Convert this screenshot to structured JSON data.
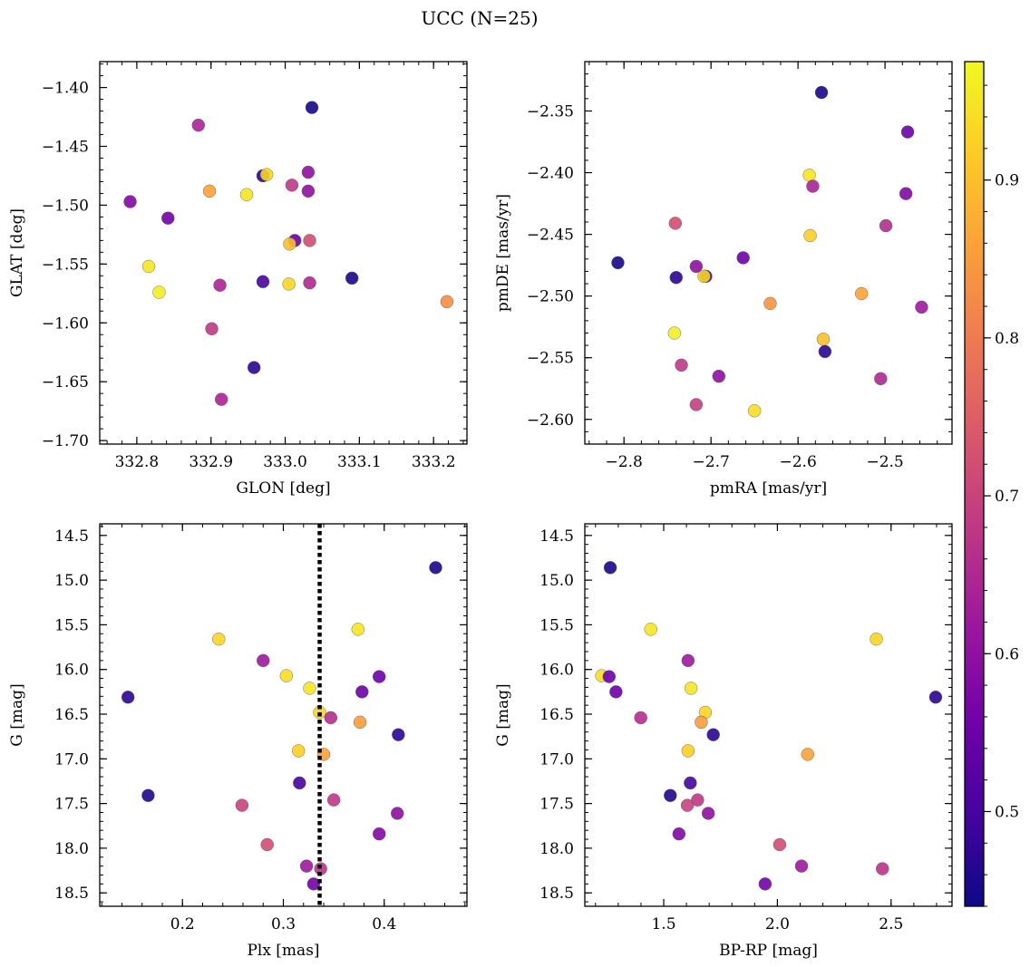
{
  "figure": {
    "title": "UCC (N=25)"
  },
  "colorbar": {
    "min": 0.44,
    "max": 0.975,
    "ticks": [
      0.5,
      0.6,
      0.7,
      0.8,
      0.9
    ],
    "tick_labels": [
      "0.5",
      "0.6",
      "0.7",
      "0.8",
      "0.9"
    ],
    "colormap": "plasma",
    "stops": [
      "#0d0887",
      "#46039f",
      "#7201a8",
      "#9c179e",
      "#bd3786",
      "#d8576b",
      "#ed7953",
      "#fb9f3a",
      "#fdca26",
      "#f0f921"
    ]
  },
  "chart_data": [
    {
      "type": "scatter",
      "name": "panel-glon-glat",
      "xlabel": "GLON [deg]",
      "ylabel": "GLAT [deg]",
      "xlim": [
        332.75,
        333.245
      ],
      "ylim": [
        -1.703,
        -1.378
      ],
      "y_inverted": false,
      "xticks": [
        332.8,
        332.9,
        333.0,
        333.1,
        333.2
      ],
      "xtick_labels": [
        "332.8",
        "332.9",
        "333.0",
        "333.1",
        "333.2"
      ],
      "yticks": [
        -1.7,
        -1.65,
        -1.6,
        -1.55,
        -1.5,
        -1.45,
        -1.4
      ],
      "ytick_labels": [
        "−1.70",
        "−1.65",
        "−1.60",
        "−1.55",
        "−1.50",
        "−1.45",
        "−1.40"
      ],
      "x_minor_step": 0.02,
      "y_minor_step": 0.01,
      "points": [
        {
          "x": 333.036,
          "y": -1.417,
          "c": 0.45
        },
        {
          "x": 332.883,
          "y": -1.432,
          "c": 0.64
        },
        {
          "x": 332.97,
          "y": -1.475,
          "c": 0.47
        },
        {
          "x": 332.975,
          "y": -1.474,
          "c": 0.93
        },
        {
          "x": 333.031,
          "y": -1.472,
          "c": 0.6
        },
        {
          "x": 333.009,
          "y": -1.483,
          "c": 0.68
        },
        {
          "x": 333.031,
          "y": -1.488,
          "c": 0.6
        },
        {
          "x": 332.898,
          "y": -1.488,
          "c": 0.86
        },
        {
          "x": 332.948,
          "y": -1.491,
          "c": 0.95
        },
        {
          "x": 332.791,
          "y": -1.497,
          "c": 0.58
        },
        {
          "x": 332.842,
          "y": -1.511,
          "c": 0.56
        },
        {
          "x": 333.013,
          "y": -1.53,
          "c": 0.55
        },
        {
          "x": 333.033,
          "y": -1.53,
          "c": 0.72
        },
        {
          "x": 333.006,
          "y": -1.533,
          "c": 0.9
        },
        {
          "x": 332.816,
          "y": -1.552,
          "c": 0.95
        },
        {
          "x": 333.09,
          "y": -1.562,
          "c": 0.45
        },
        {
          "x": 332.97,
          "y": -1.565,
          "c": 0.5
        },
        {
          "x": 333.005,
          "y": -1.567,
          "c": 0.93
        },
        {
          "x": 333.033,
          "y": -1.566,
          "c": 0.65
        },
        {
          "x": 332.912,
          "y": -1.568,
          "c": 0.64
        },
        {
          "x": 332.83,
          "y": -1.574,
          "c": 0.96
        },
        {
          "x": 333.218,
          "y": -1.582,
          "c": 0.83
        },
        {
          "x": 332.901,
          "y": -1.605,
          "c": 0.68
        },
        {
          "x": 332.958,
          "y": -1.638,
          "c": 0.47
        },
        {
          "x": 332.914,
          "y": -1.665,
          "c": 0.64
        }
      ]
    },
    {
      "type": "scatter",
      "name": "panel-pmra-pmde",
      "xlabel": "pmRA [mas/yr]",
      "ylabel": "pmDE [mas/yr]",
      "xlim": [
        -2.845,
        -2.423
      ],
      "ylim": [
        -2.62,
        -2.31
      ],
      "y_inverted": false,
      "xticks": [
        -2.8,
        -2.7,
        -2.6,
        -2.5
      ],
      "xtick_labels": [
        "−2.8",
        "−2.7",
        "−2.6",
        "−2.5"
      ],
      "yticks": [
        -2.6,
        -2.55,
        -2.5,
        -2.45,
        -2.4,
        -2.35
      ],
      "ytick_labels": [
        "−2.60",
        "−2.55",
        "−2.50",
        "−2.45",
        "−2.40",
        "−2.35"
      ],
      "x_minor_step": 0.02,
      "y_minor_step": 0.01,
      "points": [
        {
          "x": -2.573,
          "y": -2.335,
          "c": 0.45
        },
        {
          "x": -2.474,
          "y": -2.367,
          "c": 0.55
        },
        {
          "x": -2.587,
          "y": -2.402,
          "c": 0.95
        },
        {
          "x": -2.583,
          "y": -2.411,
          "c": 0.64
        },
        {
          "x": -2.476,
          "y": -2.417,
          "c": 0.58
        },
        {
          "x": -2.741,
          "y": -2.441,
          "c": 0.72
        },
        {
          "x": -2.499,
          "y": -2.443,
          "c": 0.66
        },
        {
          "x": -2.586,
          "y": -2.451,
          "c": 0.92
        },
        {
          "x": -2.663,
          "y": -2.469,
          "c": 0.55
        },
        {
          "x": -2.807,
          "y": -2.473,
          "c": 0.45
        },
        {
          "x": -2.717,
          "y": -2.476,
          "c": 0.6
        },
        {
          "x": -2.74,
          "y": -2.485,
          "c": 0.47
        },
        {
          "x": -2.706,
          "y": -2.484,
          "c": 0.5
        },
        {
          "x": -2.708,
          "y": -2.484,
          "c": 0.93
        },
        {
          "x": -2.527,
          "y": -2.498,
          "c": 0.86
        },
        {
          "x": -2.632,
          "y": -2.506,
          "c": 0.84
        },
        {
          "x": -2.458,
          "y": -2.509,
          "c": 0.62
        },
        {
          "x": -2.742,
          "y": -2.53,
          "c": 0.96
        },
        {
          "x": -2.571,
          "y": -2.535,
          "c": 0.9
        },
        {
          "x": -2.569,
          "y": -2.545,
          "c": 0.47
        },
        {
          "x": -2.734,
          "y": -2.556,
          "c": 0.68
        },
        {
          "x": -2.691,
          "y": -2.565,
          "c": 0.6
        },
        {
          "x": -2.505,
          "y": -2.567,
          "c": 0.65
        },
        {
          "x": -2.717,
          "y": -2.588,
          "c": 0.69
        },
        {
          "x": -2.65,
          "y": -2.593,
          "c": 0.94
        }
      ]
    },
    {
      "type": "scatter",
      "name": "panel-plx-g",
      "xlabel": "Plx [mas]",
      "ylabel": "G [mag]",
      "xlim": [
        0.118,
        0.482
      ],
      "ylim": [
        18.65,
        14.37
      ],
      "y_inverted": true,
      "xticks": [
        0.2,
        0.3,
        0.4
      ],
      "xtick_labels": [
        "0.2",
        "0.3",
        "0.4"
      ],
      "yticks": [
        14.5,
        15.0,
        15.5,
        16.0,
        16.5,
        17.0,
        17.5,
        18.0,
        18.5
      ],
      "ytick_labels": [
        "14.5",
        "15.0",
        "15.5",
        "16.0",
        "16.5",
        "17.0",
        "17.5",
        "18.0",
        "18.5"
      ],
      "x_minor_step": 0.02,
      "y_minor_step": 0.1,
      "vline_x": 0.336,
      "points": [
        {
          "x": 0.451,
          "y": 14.86,
          "c": 0.45
        },
        {
          "x": 0.374,
          "y": 15.55,
          "c": 0.95
        },
        {
          "x": 0.236,
          "y": 15.66,
          "c": 0.93
        },
        {
          "x": 0.28,
          "y": 15.9,
          "c": 0.62
        },
        {
          "x": 0.395,
          "y": 16.08,
          "c": 0.55
        },
        {
          "x": 0.303,
          "y": 16.07,
          "c": 0.94
        },
        {
          "x": 0.326,
          "y": 16.21,
          "c": 0.95
        },
        {
          "x": 0.378,
          "y": 16.25,
          "c": 0.55
        },
        {
          "x": 0.146,
          "y": 16.31,
          "c": 0.47
        },
        {
          "x": 0.336,
          "y": 16.48,
          "c": 0.93
        },
        {
          "x": 0.347,
          "y": 16.54,
          "c": 0.66
        },
        {
          "x": 0.376,
          "y": 16.59,
          "c": 0.85
        },
        {
          "x": 0.414,
          "y": 16.73,
          "c": 0.47
        },
        {
          "x": 0.315,
          "y": 16.91,
          "c": 0.92
        },
        {
          "x": 0.34,
          "y": 16.95,
          "c": 0.86
        },
        {
          "x": 0.316,
          "y": 17.27,
          "c": 0.5
        },
        {
          "x": 0.166,
          "y": 17.41,
          "c": 0.46
        },
        {
          "x": 0.35,
          "y": 17.46,
          "c": 0.68
        },
        {
          "x": 0.259,
          "y": 17.52,
          "c": 0.7
        },
        {
          "x": 0.413,
          "y": 17.61,
          "c": 0.6
        },
        {
          "x": 0.395,
          "y": 17.84,
          "c": 0.58
        },
        {
          "x": 0.284,
          "y": 17.96,
          "c": 0.72
        },
        {
          "x": 0.323,
          "y": 18.2,
          "c": 0.62
        },
        {
          "x": 0.337,
          "y": 18.23,
          "c": 0.67
        },
        {
          "x": 0.33,
          "y": 18.4,
          "c": 0.56
        }
      ]
    },
    {
      "type": "scatter",
      "name": "panel-bprp-g",
      "xlabel": "BP-RP [mag]",
      "ylabel": "G [mag]",
      "xlim": [
        1.153,
        2.768
      ],
      "ylim": [
        18.65,
        14.37
      ],
      "y_inverted": true,
      "xticks": [
        1.5,
        2.0,
        2.5
      ],
      "xtick_labels": [
        "1.5",
        "2.0",
        "2.5"
      ],
      "yticks": [
        14.5,
        15.0,
        15.5,
        16.0,
        16.5,
        17.0,
        17.5,
        18.0,
        18.5
      ],
      "ytick_labels": [
        "14.5",
        "15.0",
        "15.5",
        "16.0",
        "16.5",
        "17.0",
        "17.5",
        "18.0",
        "18.5"
      ],
      "x_minor_step": 0.1,
      "y_minor_step": 0.1,
      "points": [
        {
          "x": 1.265,
          "y": 14.86,
          "c": 0.45
        },
        {
          "x": 1.443,
          "y": 15.55,
          "c": 0.95
        },
        {
          "x": 2.435,
          "y": 15.66,
          "c": 0.93
        },
        {
          "x": 1.607,
          "y": 15.9,
          "c": 0.62
        },
        {
          "x": 1.227,
          "y": 16.07,
          "c": 0.94
        },
        {
          "x": 1.26,
          "y": 16.08,
          "c": 0.55
        },
        {
          "x": 1.62,
          "y": 16.21,
          "c": 0.95
        },
        {
          "x": 1.29,
          "y": 16.25,
          "c": 0.55
        },
        {
          "x": 2.696,
          "y": 16.31,
          "c": 0.47
        },
        {
          "x": 1.683,
          "y": 16.48,
          "c": 0.93
        },
        {
          "x": 1.399,
          "y": 16.54,
          "c": 0.66
        },
        {
          "x": 1.665,
          "y": 16.59,
          "c": 0.85
        },
        {
          "x": 1.718,
          "y": 16.73,
          "c": 0.47
        },
        {
          "x": 1.607,
          "y": 16.91,
          "c": 0.92
        },
        {
          "x": 2.133,
          "y": 16.95,
          "c": 0.86
        },
        {
          "x": 1.617,
          "y": 17.27,
          "c": 0.5
        },
        {
          "x": 1.529,
          "y": 17.41,
          "c": 0.46
        },
        {
          "x": 1.649,
          "y": 17.46,
          "c": 0.68
        },
        {
          "x": 1.604,
          "y": 17.52,
          "c": 0.7
        },
        {
          "x": 1.696,
          "y": 17.61,
          "c": 0.6
        },
        {
          "x": 1.567,
          "y": 17.84,
          "c": 0.58
        },
        {
          "x": 2.01,
          "y": 17.96,
          "c": 0.72
        },
        {
          "x": 2.106,
          "y": 18.2,
          "c": 0.62
        },
        {
          "x": 2.462,
          "y": 18.23,
          "c": 0.67
        },
        {
          "x": 1.946,
          "y": 18.4,
          "c": 0.56
        }
      ]
    }
  ]
}
